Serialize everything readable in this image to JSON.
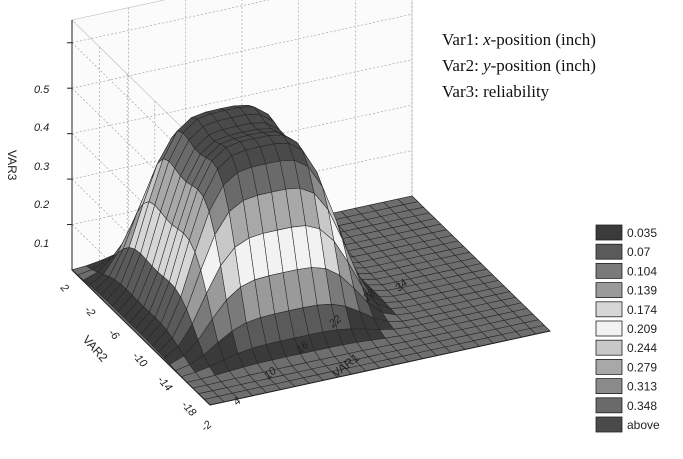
{
  "chart_data": {
    "type": "surface",
    "xlabel": "VAR1",
    "ylabel": "VAR2",
    "zlabel": "VAR3",
    "x_ticks": [
      "-2",
      "4",
      "10",
      "16",
      "22",
      "28",
      "34"
    ],
    "y_ticks": [
      "2",
      "-2",
      "-6",
      "-10",
      "-14",
      "-18"
    ],
    "z_ticks": [
      "0.1",
      "0.2",
      "0.3",
      "0.4",
      "0.5"
    ],
    "xlim": [
      -2,
      34
    ],
    "ylim": [
      -18,
      2
    ],
    "zlim": [
      0,
      0.55
    ],
    "peak": {
      "var1": 10,
      "var2": -6,
      "var3": 0.4
    },
    "contour_levels": [
      0.035,
      0.07,
      0.104,
      0.139,
      0.174,
      0.209,
      0.244,
      0.279,
      0.313,
      0.348
    ],
    "legend_entries": [
      "0.035",
      "0.07",
      "0.104",
      "0.139",
      "0.174",
      "0.209",
      "0.244",
      "0.279",
      "0.313",
      "0.348",
      "above"
    ],
    "legend_colors": [
      "#3a3a3a",
      "#5a5a5a",
      "#7a7a7a",
      "#9a9a9a",
      "#d6d6d6",
      "#f2f2f2",
      "#c8c8c8",
      "#a8a8a8",
      "#8a8a8a",
      "#6a6a6a",
      "#4a4a4a"
    ],
    "legend_position": "bottom-right",
    "grid": true,
    "variable_descriptions": [
      {
        "name": "Var1",
        "sep": ": ",
        "axis": "x",
        "desc": "-position (inch)"
      },
      {
        "name": "Var2",
        "sep": ": ",
        "axis": "y",
        "desc": "-position (inch)"
      },
      {
        "name": "Var3",
        "sep": ": ",
        "axis": "",
        "desc": "reliability"
      }
    ]
  }
}
